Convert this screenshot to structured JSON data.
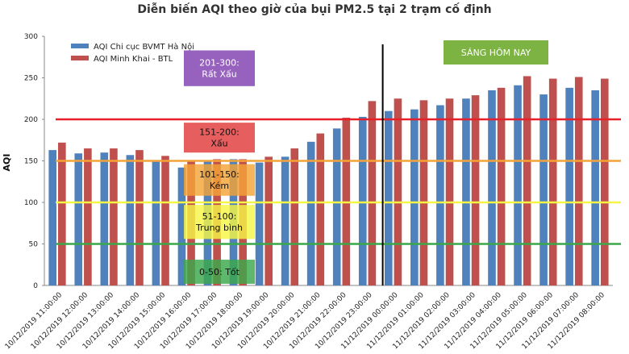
{
  "chart_data": {
    "type": "bar",
    "title": "Diễn biến AQI theo giờ của bụi PM2.5 tại 2 trạm cố định",
    "ylabel": "AQI",
    "xlabel": "",
    "ylim": [
      0,
      300
    ],
    "yticks": [
      0,
      50,
      100,
      150,
      200,
      250,
      300
    ],
    "grid": false,
    "legend_position": "top-left",
    "categories": [
      "10/12/2019 11:00:00",
      "10/12/2019 12:00:00",
      "10/12/2019 13:00:00",
      "10/12/2019 14:00:00",
      "10/12/2019 15:00:00",
      "10/12/2019 16:00:00",
      "10/12/2019 17:00:00",
      "10/12/2019 18:00:00",
      "10/12/2019 19:00:00",
      "10/12/2019 20:00:00",
      "10/12/2019 21:00:00",
      "10/12/2019 22:00:00",
      "10/12/2019 23:00:00",
      "11/12/2019 00:00:00",
      "11/12/2019 01:00:00",
      "11/12/2019 02:00:00",
      "11/12/2019 03:00:00",
      "11/12/2019 04:00:00",
      "11/12/2019 05:00:00",
      "11/12/2019 06:00:00",
      "11/12/2019 07:00:00",
      "11/12/2019 08:00:00"
    ],
    "series": [
      {
        "name": "AQI Chi cục BVMT Hà Nội",
        "color": "#4f81bd",
        "values": [
          163,
          159,
          160,
          157,
          149,
          142,
          150,
          152,
          148,
          155,
          173,
          189,
          203,
          210,
          212,
          217,
          225,
          235,
          241,
          230,
          238,
          235
        ]
      },
      {
        "name": "AQI Minh Khai - BTL",
        "color": "#c0504d",
        "values": [
          172,
          165,
          165,
          163,
          156,
          150,
          152,
          152,
          155,
          165,
          183,
          202,
          222,
          225,
          223,
          225,
          229,
          238,
          252,
          249,
          251,
          249
        ]
      }
    ],
    "threshold_lines": [
      {
        "value": 200,
        "color": "#e8202a"
      },
      {
        "value": 150,
        "color": "#f4a437"
      },
      {
        "value": 100,
        "color": "#f5f545"
      },
      {
        "value": 50,
        "color": "#3aa84a"
      }
    ],
    "zones": [
      {
        "range": "201-300:",
        "label": "Rất Xấu",
        "color": "#7f3fb0",
        "text_color": "#ffffff",
        "y_top": 283,
        "y_bottom": 240
      },
      {
        "range": "151-200:",
        "label": "Xấu",
        "color": "#e23a3a",
        "text_color": "#111111",
        "y_top": 196,
        "y_bottom": 160
      },
      {
        "range": "101-150:",
        "label": "Kém",
        "color": "#f4a437",
        "text_color": "#111111",
        "y_top": 146,
        "y_bottom": 108
      },
      {
        "range": "51-100:",
        "label": "Trung bình",
        "color": "#f5f545",
        "text_color": "#111111",
        "y_top": 97,
        "y_bottom": 56
      },
      {
        "range": "0-50:",
        "label": "Tốt",
        "color": "#3aa84a",
        "text_color": "#111111",
        "y_top": 31,
        "y_bottom": 2
      }
    ],
    "divider_after_category": "10/12/2019 23:00:00",
    "annotation": {
      "text": "SÁNG HÔM NAY",
      "color": "#7cb342"
    }
  }
}
